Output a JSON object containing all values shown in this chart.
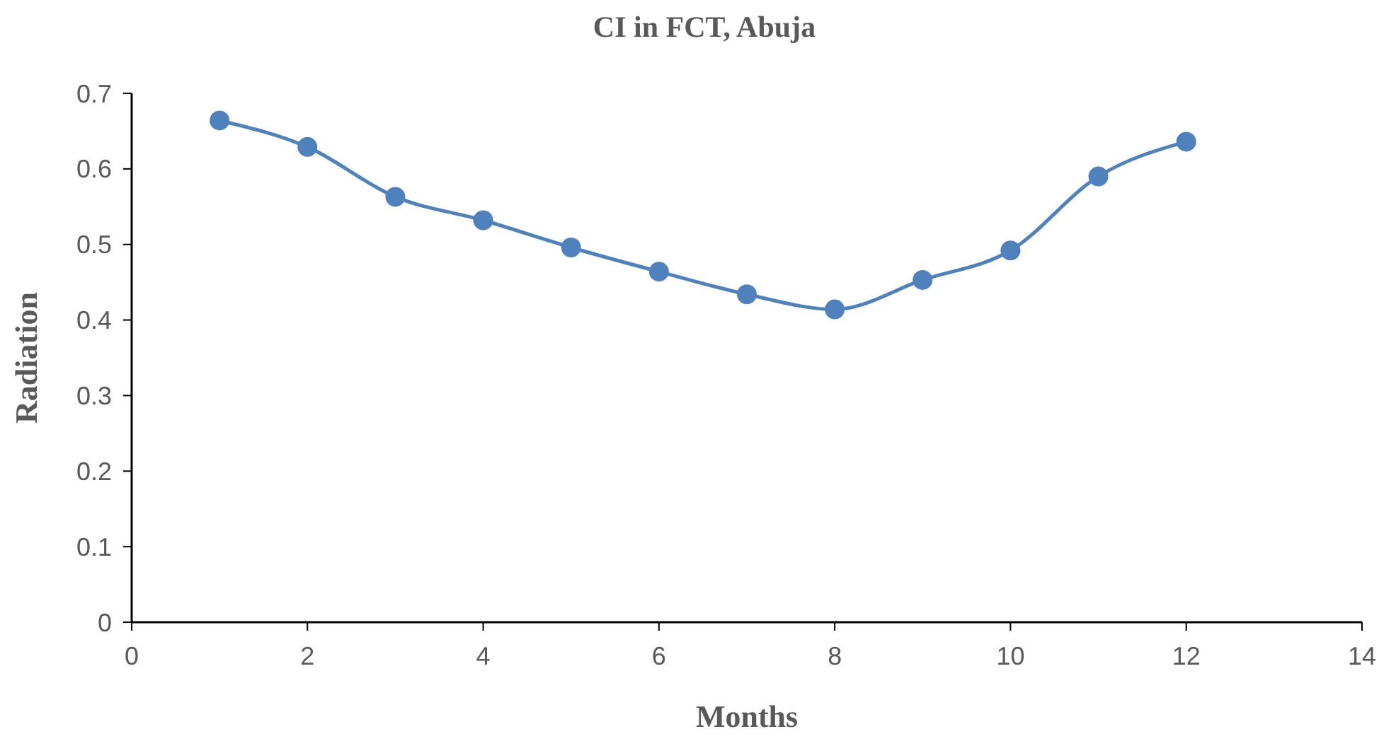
{
  "chart_data": {
    "type": "line",
    "title": "CI in FCT, Abuja",
    "xlabel": "Months",
    "ylabel": "Radiation",
    "x": [
      1,
      2,
      3,
      4,
      5,
      6,
      7,
      8,
      9,
      10,
      11,
      12
    ],
    "series": [
      {
        "color": "#4f81bd",
        "values": [
          0.664,
          0.629,
          0.563,
          0.532,
          0.496,
          0.464,
          0.434,
          0.414,
          0.453,
          0.492,
          0.59,
          0.636
        ]
      }
    ],
    "xlim": [
      0,
      14
    ],
    "xticks": [
      0,
      2,
      4,
      6,
      8,
      10,
      12,
      14
    ],
    "ylim": [
      0,
      0.7
    ],
    "yticks": [
      0,
      0.1,
      0.2,
      0.3,
      0.4,
      0.5,
      0.6,
      0.7
    ],
    "grid": false,
    "marker": "circle",
    "line_style": "solid"
  }
}
